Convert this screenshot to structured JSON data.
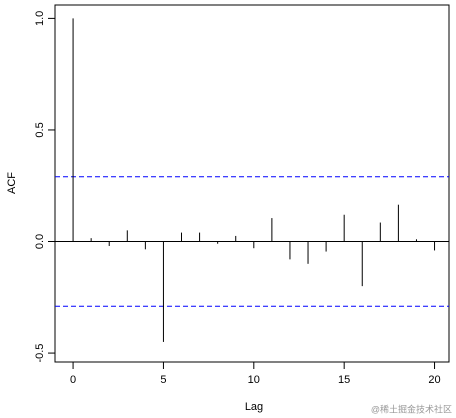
{
  "chart_data": {
    "type": "stem",
    "x_label": "Lag",
    "y_label": "ACF",
    "x": [
      0,
      1,
      2,
      3,
      4,
      5,
      6,
      7,
      8,
      9,
      10,
      11,
      12,
      13,
      14,
      15,
      16,
      17,
      18,
      19,
      20
    ],
    "values": [
      1.0,
      0.015,
      -0.02,
      0.05,
      -0.035,
      -0.45,
      0.04,
      0.04,
      -0.01,
      0.025,
      -0.03,
      0.105,
      -0.08,
      -0.1,
      -0.045,
      0.12,
      -0.2,
      0.085,
      0.165,
      0.01,
      -0.04
    ],
    "color": "#000000",
    "conf_bounds": [
      0.29,
      -0.29
    ],
    "conf_color": "#0000ff",
    "xlim": [
      -1,
      20.8
    ],
    "xticks": [
      0,
      5,
      10,
      15,
      20
    ],
    "ylim": [
      -0.54,
      1.06
    ],
    "yticks": [
      -0.5,
      {
        "value": 0,
        "label": "0.0"
      },
      0.5,
      {
        "value": 1,
        "label": "1.0"
      }
    ],
    "watermark": "@稀土掘金技术社区"
  }
}
